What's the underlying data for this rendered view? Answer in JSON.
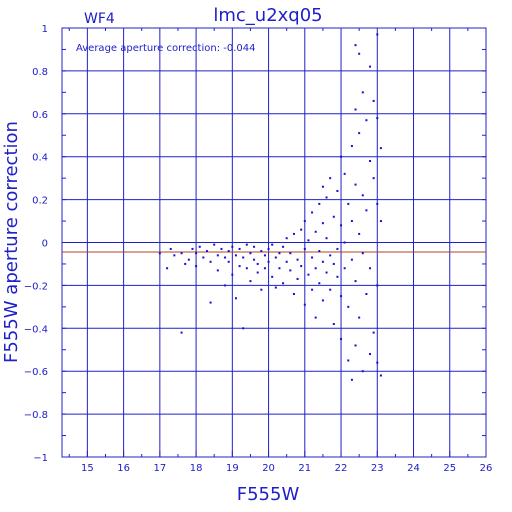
{
  "chart_data": {
    "type": "scatter",
    "title": "lmc_u2xq05",
    "chip_label": "WF4",
    "annotation": "Average aperture correction:  -0.044",
    "xlabel": "F555W",
    "ylabel": "F555W aperture correction",
    "xlim": [
      14.3,
      26
    ],
    "ylim": [
      -1,
      1
    ],
    "x_ticks": [
      15,
      16,
      17,
      18,
      19,
      20,
      21,
      22,
      23,
      24,
      25,
      26
    ],
    "y_ticks": [
      -1,
      -0.8,
      -0.6,
      -0.4,
      -0.2,
      0,
      0.2,
      0.4,
      0.6,
      0.8,
      1
    ],
    "x_tick_labels": [
      "15",
      "16",
      "17",
      "18",
      "19",
      "20",
      "21",
      "22",
      "23",
      "24",
      "25",
      "26"
    ],
    "y_tick_labels": [
      "−1",
      "−0.8",
      "−0.6",
      "−0.4",
      "−0.2",
      "0",
      "0.2",
      "0.4",
      "0.6",
      "0.8",
      "1"
    ],
    "grid": true,
    "reference_line": {
      "y": -0.044
    },
    "colors": {
      "axes": "#2020c8",
      "points": "#1010d8",
      "reference_line": "#b84020",
      "background": "#ffffff"
    },
    "series": [
      {
        "points": [
          [
            17.0,
            -0.05
          ],
          [
            17.2,
            -0.12
          ],
          [
            17.3,
            -0.03
          ],
          [
            17.4,
            -0.06
          ],
          [
            17.6,
            -0.42
          ],
          [
            17.6,
            -0.05
          ],
          [
            17.7,
            -0.1
          ],
          [
            17.8,
            -0.08
          ],
          [
            17.9,
            -0.03
          ],
          [
            18.0,
            -0.11
          ],
          [
            18.0,
            -0.05
          ],
          [
            18.1,
            -0.02
          ],
          [
            18.2,
            -0.07
          ],
          [
            18.3,
            -0.04
          ],
          [
            18.4,
            -0.28
          ],
          [
            18.4,
            -0.09
          ],
          [
            18.5,
            -0.01
          ],
          [
            18.6,
            -0.06
          ],
          [
            18.6,
            -0.13
          ],
          [
            18.7,
            -0.03
          ],
          [
            18.8,
            -0.2
          ],
          [
            18.8,
            -0.07
          ],
          [
            18.9,
            -0.04
          ],
          [
            18.9,
            -0.09
          ],
          [
            19.0,
            -0.02
          ],
          [
            19.0,
            -0.15
          ],
          [
            19.1,
            -0.06
          ],
          [
            19.1,
            -0.26
          ],
          [
            19.2,
            -0.03
          ],
          [
            19.2,
            -0.11
          ],
          [
            19.3,
            -0.4
          ],
          [
            19.3,
            -0.07
          ],
          [
            19.4,
            -0.01
          ],
          [
            19.4,
            -0.12
          ],
          [
            19.5,
            -0.05
          ],
          [
            19.5,
            -0.18
          ],
          [
            19.6,
            -0.08
          ],
          [
            19.6,
            -0.02
          ],
          [
            19.7,
            -0.1
          ],
          [
            19.7,
            -0.14
          ],
          [
            19.8,
            -0.04
          ],
          [
            19.8,
            -0.22
          ],
          [
            19.9,
            -0.06
          ],
          [
            19.9,
            -0.12
          ],
          [
            20.0,
            -0.03
          ],
          [
            20.0,
            -0.09
          ],
          [
            20.1,
            -0.16
          ],
          [
            20.1,
            -0.01
          ],
          [
            20.2,
            -0.07
          ],
          [
            20.2,
            -0.21
          ],
          [
            20.3,
            -0.05
          ],
          [
            20.3,
            -0.12
          ],
          [
            20.4,
            -0.02
          ],
          [
            20.4,
            -0.19
          ],
          [
            20.5,
            -0.09
          ],
          [
            20.5,
            0.02
          ],
          [
            20.6,
            -0.13
          ],
          [
            20.6,
            -0.05
          ],
          [
            20.7,
            -0.24
          ],
          [
            20.7,
            0.04
          ],
          [
            20.8,
            -0.08
          ],
          [
            20.8,
            -0.17
          ],
          [
            20.9,
            0.06
          ],
          [
            20.9,
            -0.11
          ],
          [
            21.0,
            -0.03
          ],
          [
            21.0,
            -0.29
          ],
          [
            21.0,
            0.1
          ],
          [
            21.1,
            -0.15
          ],
          [
            21.1,
            0.01
          ],
          [
            21.2,
            -0.07
          ],
          [
            21.2,
            -0.22
          ],
          [
            21.2,
            0.14
          ],
          [
            21.3,
            0.05
          ],
          [
            21.3,
            -0.12
          ],
          [
            21.3,
            -0.35
          ],
          [
            21.4,
            0.18
          ],
          [
            21.4,
            -0.04
          ],
          [
            21.4,
            -0.19
          ],
          [
            21.5,
            0.09
          ],
          [
            21.5,
            -0.09
          ],
          [
            21.5,
            0.26
          ],
          [
            21.5,
            -0.27
          ],
          [
            21.6,
            0.02
          ],
          [
            21.6,
            -0.14
          ],
          [
            21.6,
            0.21
          ],
          [
            21.7,
            -0.06
          ],
          [
            21.7,
            0.3
          ],
          [
            21.7,
            -0.22
          ],
          [
            21.8,
            0.12
          ],
          [
            21.8,
            -0.1
          ],
          [
            21.8,
            -0.38
          ],
          [
            21.9,
            0.24
          ],
          [
            21.9,
            -0.03
          ],
          [
            21.9,
            -0.16
          ],
          [
            22.0,
            0.4
          ],
          [
            22.0,
            0.08
          ],
          [
            22.0,
            -0.25
          ],
          [
            22.0,
            -0.45
          ],
          [
            22.1,
            0.32
          ],
          [
            22.1,
            0.0
          ],
          [
            22.1,
            -0.12
          ],
          [
            22.2,
            0.18
          ],
          [
            22.2,
            -0.3
          ],
          [
            22.2,
            -0.55
          ],
          [
            22.3,
            0.45
          ],
          [
            22.3,
            0.1
          ],
          [
            22.3,
            -0.08
          ],
          [
            22.3,
            -0.64
          ],
          [
            22.4,
            0.92
          ],
          [
            22.4,
            0.62
          ],
          [
            22.4,
            0.27
          ],
          [
            22.4,
            -0.18
          ],
          [
            22.4,
            -0.48
          ],
          [
            22.5,
            0.88
          ],
          [
            22.5,
            0.51
          ],
          [
            22.5,
            0.04
          ],
          [
            22.5,
            -0.35
          ],
          [
            22.6,
            0.7
          ],
          [
            22.6,
            0.22
          ],
          [
            22.6,
            -0.05
          ],
          [
            22.6,
            -0.6
          ],
          [
            22.7,
            0.57
          ],
          [
            22.7,
            0.15
          ],
          [
            22.7,
            -0.24
          ],
          [
            22.8,
            0.82
          ],
          [
            22.8,
            0.38
          ],
          [
            22.8,
            -0.12
          ],
          [
            22.8,
            -0.52
          ],
          [
            22.9,
            0.66
          ],
          [
            22.9,
            0.3
          ],
          [
            22.9,
            -0.42
          ],
          [
            23.0,
            0.97
          ],
          [
            23.0,
            0.58
          ],
          [
            23.0,
            0.18
          ],
          [
            23.0,
            -0.2
          ],
          [
            23.0,
            -0.56
          ],
          [
            23.1,
            0.44
          ],
          [
            23.1,
            0.1
          ],
          [
            23.1,
            -0.62
          ]
        ]
      }
    ]
  }
}
